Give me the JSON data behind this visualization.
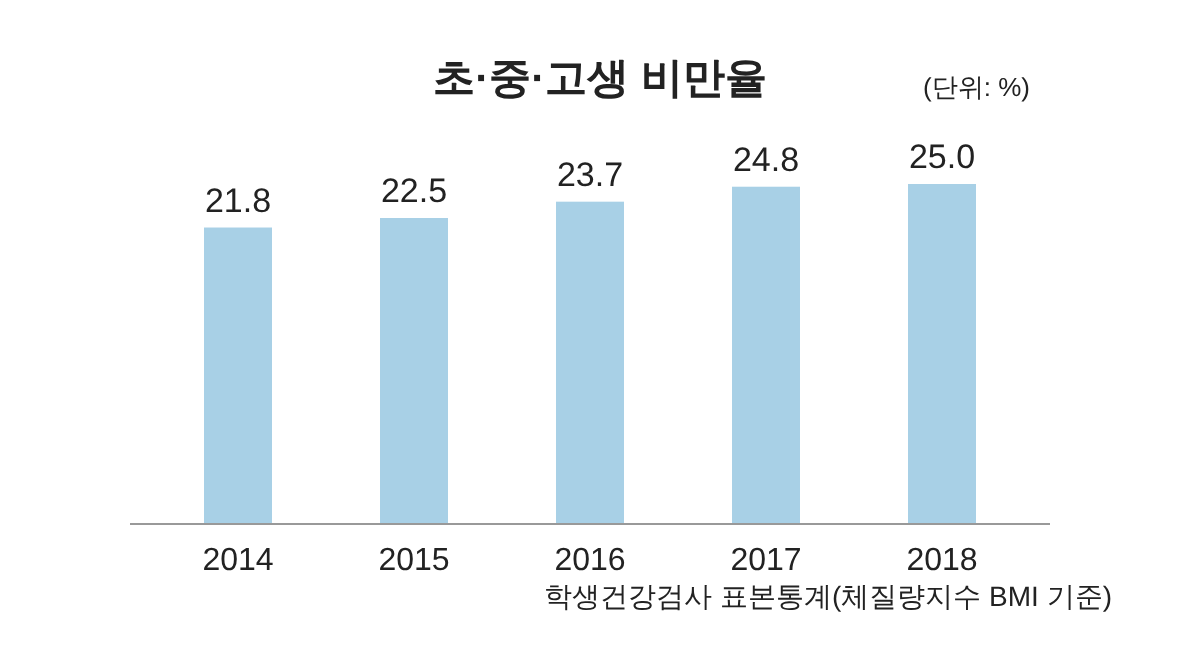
{
  "chart_data": {
    "type": "bar",
    "title": "초·중·고생 비만율",
    "categories": [
      "2014",
      "2015",
      "2016",
      "2017",
      "2018"
    ],
    "values": [
      21.8,
      22.5,
      23.7,
      24.8,
      25.0
    ],
    "value_labels": [
      "21.8",
      "22.5",
      "23.7",
      "24.8",
      "25.0"
    ],
    "color": "#a8d0e6",
    "tick_labels": "x",
    "annotations": [
      "(단위: %)",
      "학생건강검사 표본통계(체질량지수 BMI 기준)"
    ]
  }
}
